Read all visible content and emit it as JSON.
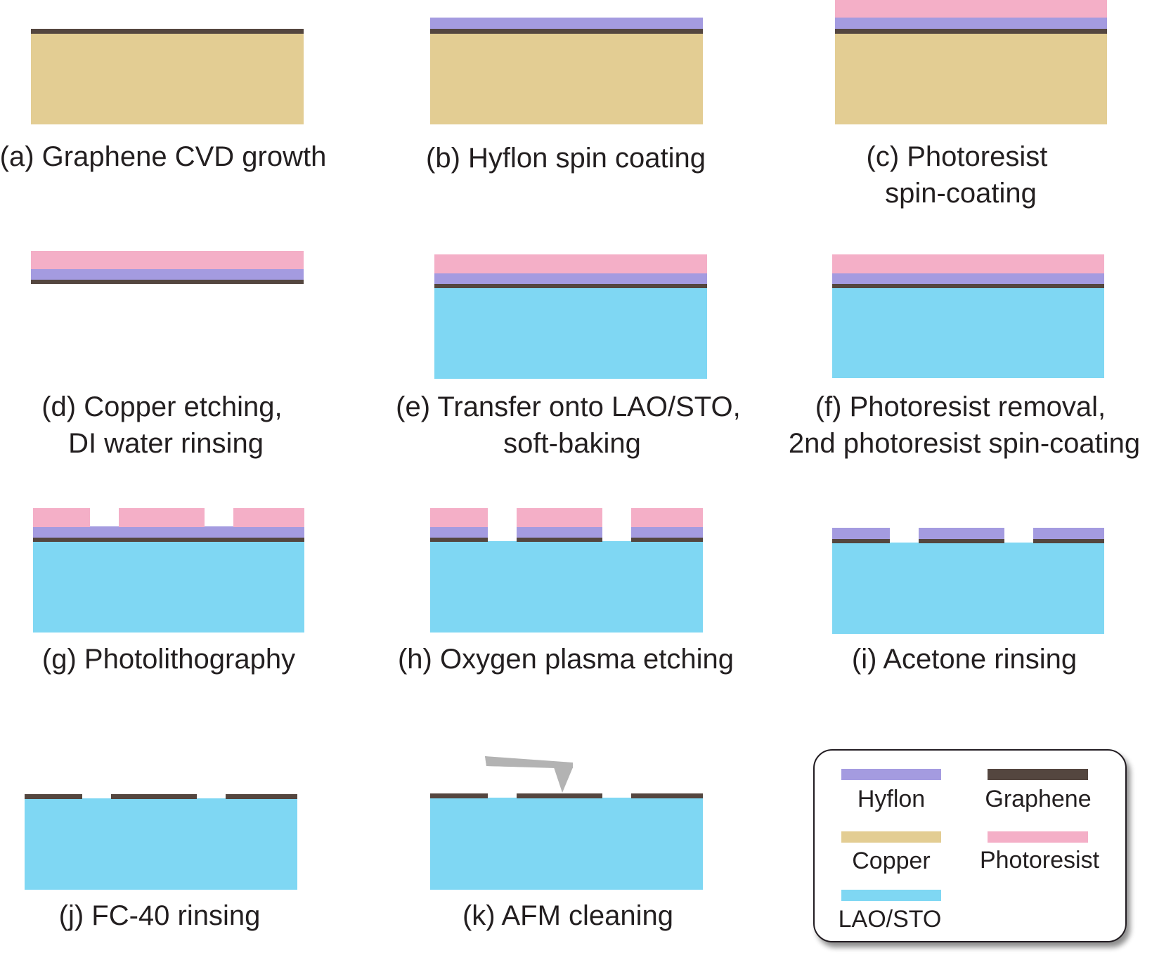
{
  "colors": {
    "hyflon": "#a49be0",
    "graphene": "#54463f",
    "copper": "#e3cd93",
    "photoresist": "#f4afc7",
    "lao_sto": "#7fd7f3",
    "afm_tip": "#b3b3b3",
    "legend_border": "#231f20"
  },
  "steps": {
    "a": {
      "caption": [
        "(a) Graphene CVD growth"
      ]
    },
    "b": {
      "caption": [
        "(b) Hyflon spin coating"
      ]
    },
    "c": {
      "caption": [
        "(c) Photoresist",
        "spin-coating"
      ]
    },
    "d": {
      "caption": [
        "(d) Copper etching,",
        "DI water rinsing"
      ]
    },
    "e": {
      "caption": [
        "(e) Transfer onto LAO/STO,",
        "soft-baking"
      ]
    },
    "f": {
      "caption": [
        "(f) Photoresist removal,",
        "2nd photoresist spin-coating"
      ]
    },
    "g": {
      "caption": [
        "(g) Photolithography"
      ]
    },
    "h": {
      "caption": [
        "(h) Oxygen plasma etching"
      ]
    },
    "i": {
      "caption": [
        "(i) Acetone rinsing"
      ]
    },
    "j": {
      "caption": [
        "(j) FC-40 rinsing"
      ]
    },
    "k": {
      "caption": [
        "(k) AFM cleaning"
      ]
    }
  },
  "legend": {
    "items": [
      {
        "label": "Hyflon",
        "color_key": "hyflon"
      },
      {
        "label": "Graphene",
        "color_key": "graphene"
      },
      {
        "label": "Copper",
        "color_key": "copper"
      },
      {
        "label": "Photoresist",
        "color_key": "photoresist"
      },
      {
        "label": "LAO/STO",
        "color_key": "lao_sto"
      }
    ]
  }
}
